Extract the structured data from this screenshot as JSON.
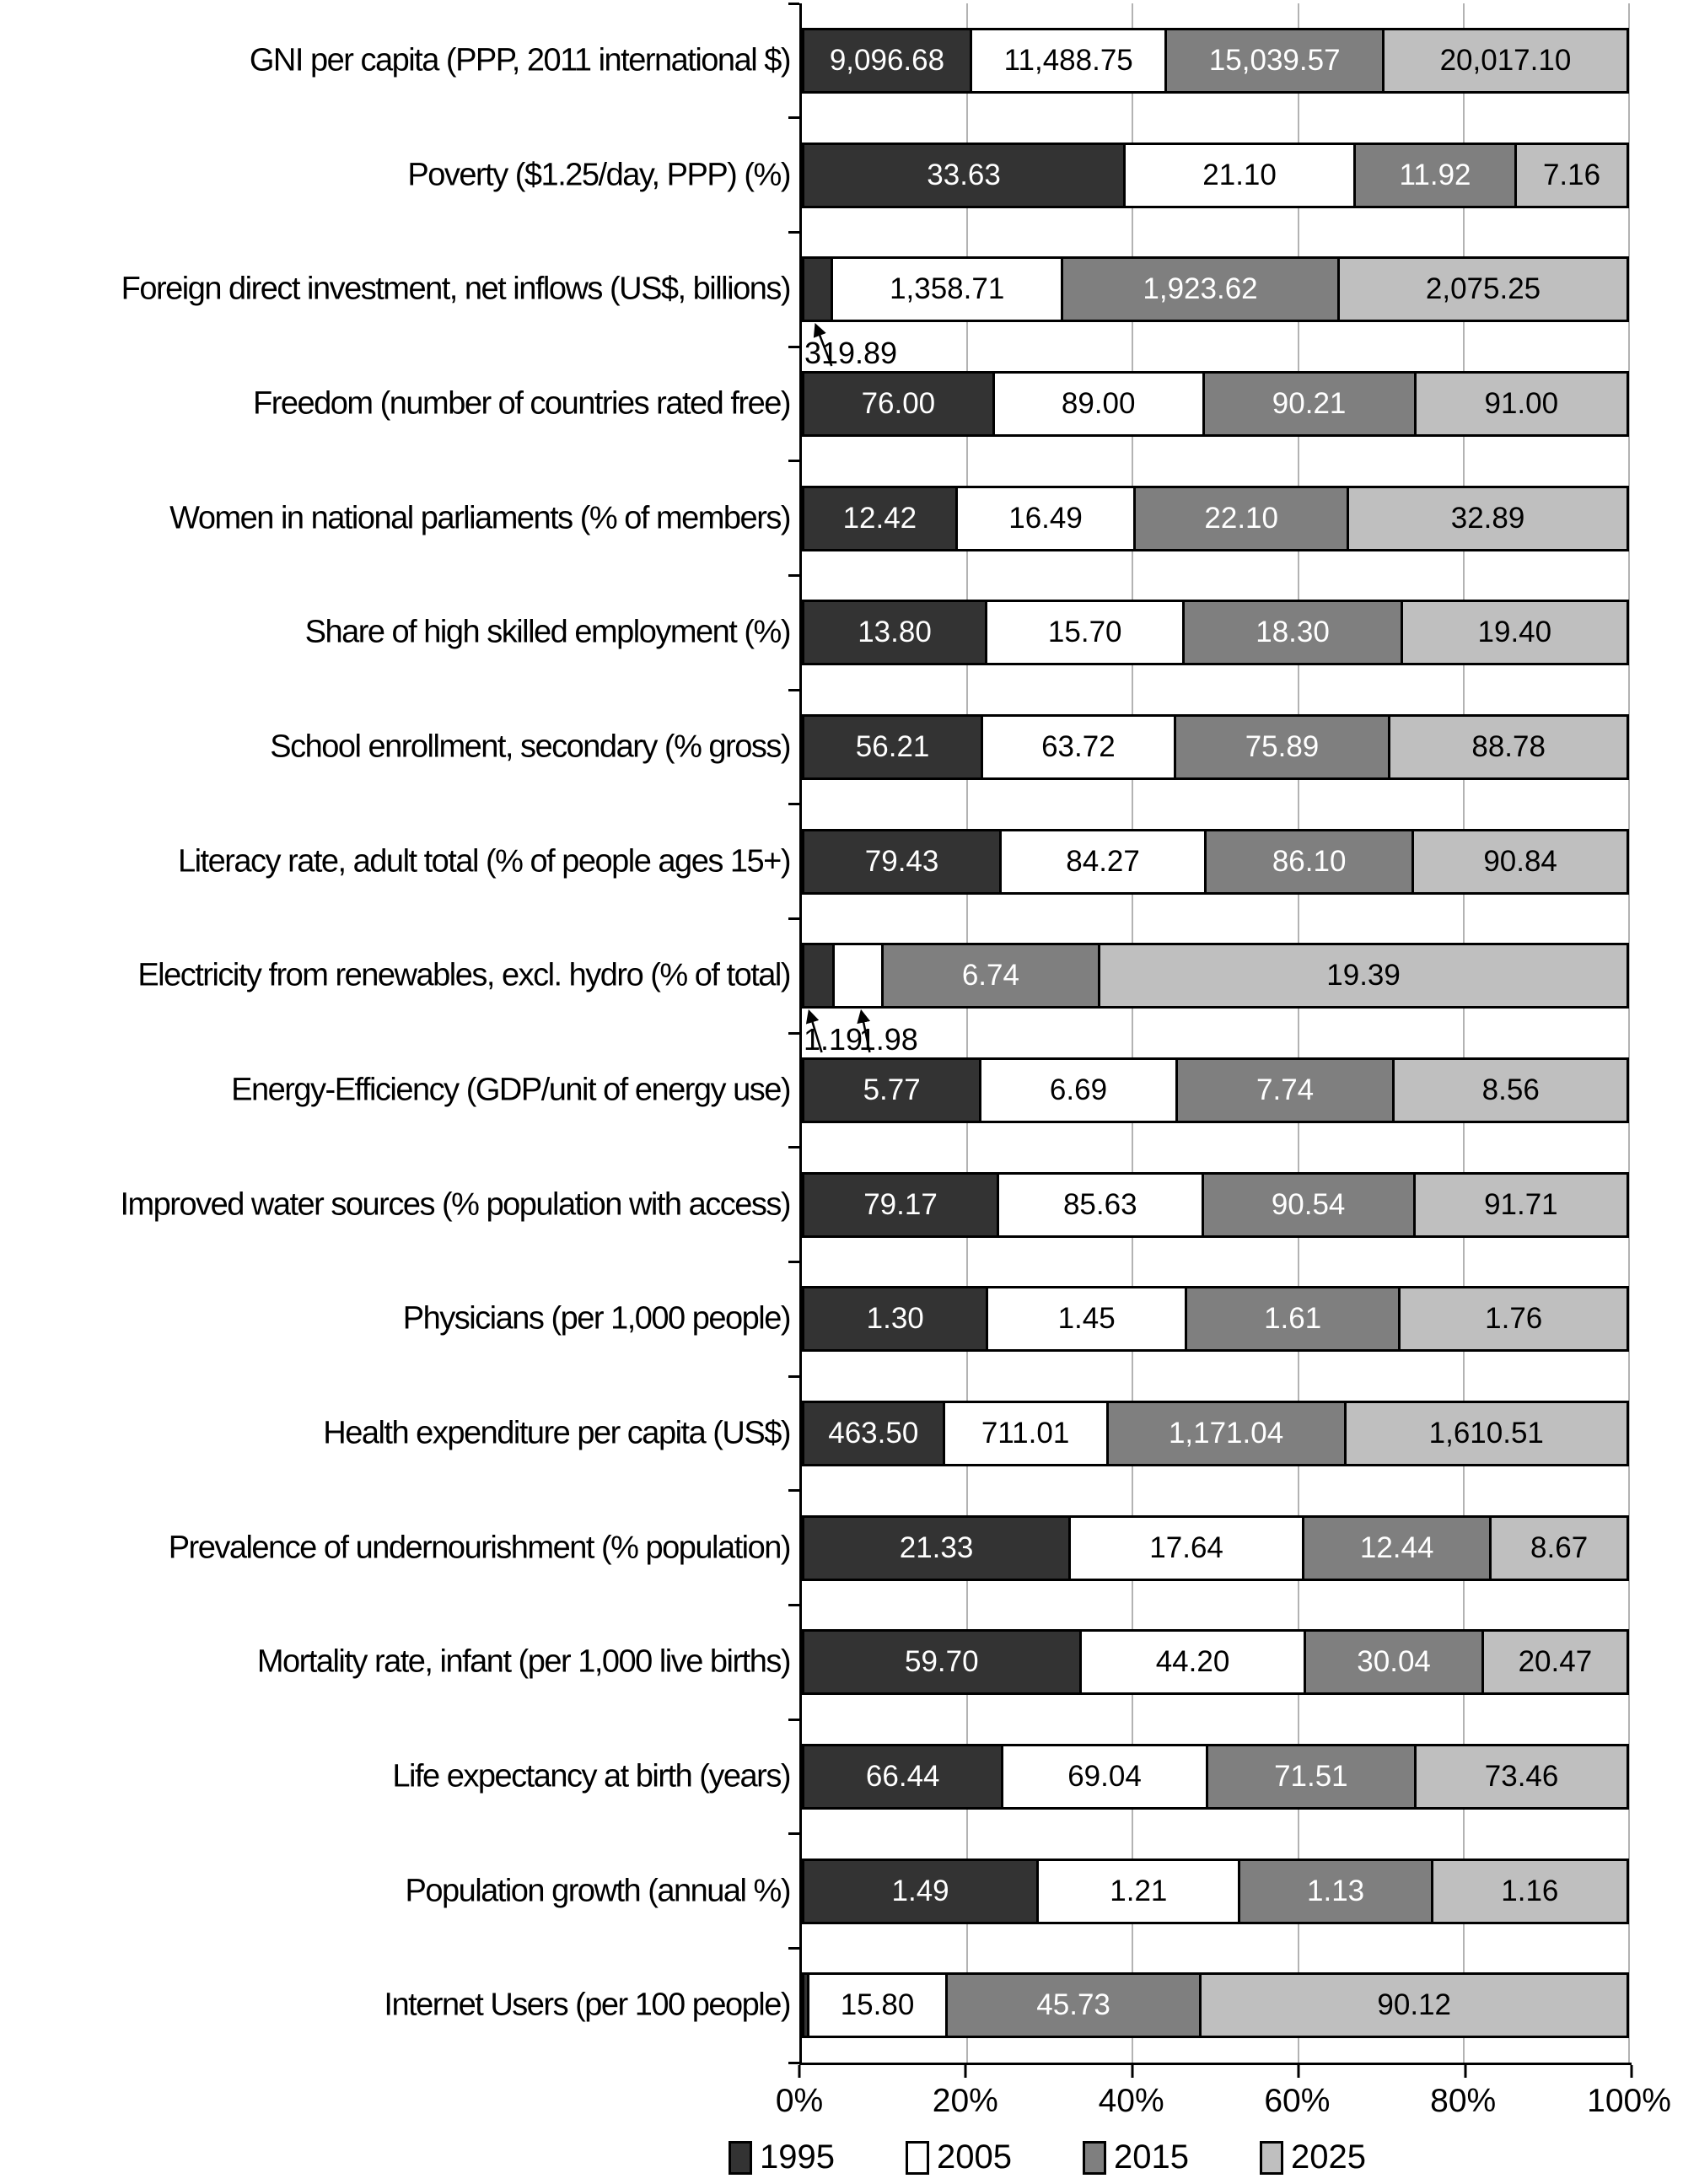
{
  "chart_data": {
    "type": "bar",
    "subtype": "horizontal_100pct_stacked",
    "note": "Each bar is normalized to 100%; segment labels show raw indicator values",
    "series_years": [
      "1995",
      "2005",
      "2015",
      "2025"
    ],
    "series_colors": {
      "1995": "#333333",
      "2005": "#ffffff",
      "2015": "#7f7f7f",
      "2025": "#bfbfbf"
    },
    "value_label_colors": {
      "1995": "#ffffff",
      "2005": "#000000",
      "2015": "#ffffff",
      "2025": "#000000"
    },
    "gridline_color": "#b3b3b3",
    "rows": [
      {
        "label": "GNI per capita (PPP, 2011 international $)",
        "segments": [
          {
            "year": "1995",
            "value": "9,096.68"
          },
          {
            "year": "2005",
            "value": "11,488.75"
          },
          {
            "year": "2015",
            "value": "15,039.57"
          },
          {
            "year": "2025",
            "value": "20,017.10"
          }
        ]
      },
      {
        "label": "Poverty ($1.25/day, PPP) (%)",
        "segments": [
          {
            "year": "1995",
            "value": "33.63"
          },
          {
            "year": "2005",
            "value": "21.10"
          },
          {
            "year": "2015",
            "value": "11.92"
          },
          {
            "year": "2025",
            "value": "7.16"
          }
        ]
      },
      {
        "label": "Foreign direct investment, net inflows (US$, billions)",
        "segments": [
          {
            "year": "1995",
            "value": "319.89",
            "label_outside": true
          },
          {
            "year": "2005",
            "value": "1,358.71"
          },
          {
            "year": "2015",
            "value": "1,923.62"
          },
          {
            "year": "2025",
            "value": "2,075.25"
          }
        ],
        "annotations": [
          {
            "text": "319.89",
            "text_pct": 0.3,
            "tail_pct": 3.6,
            "head_pct": 1.7
          }
        ]
      },
      {
        "label": "Freedom (number of countries rated free)",
        "segments": [
          {
            "year": "1995",
            "value": "76.00"
          },
          {
            "year": "2005",
            "value": "89.00"
          },
          {
            "year": "2015",
            "value": "90.21"
          },
          {
            "year": "2025",
            "value": "91.00"
          }
        ]
      },
      {
        "label": "Women in national parliaments (% of members)",
        "segments": [
          {
            "year": "1995",
            "value": "12.42"
          },
          {
            "year": "2005",
            "value": "16.49"
          },
          {
            "year": "2015",
            "value": "22.10"
          },
          {
            "year": "2025",
            "value": "32.89"
          }
        ]
      },
      {
        "label": "Share of high skilled employment (%)",
        "segments": [
          {
            "year": "1995",
            "value": "13.80"
          },
          {
            "year": "2005",
            "value": "15.70"
          },
          {
            "year": "2015",
            "value": "18.30"
          },
          {
            "year": "2025",
            "value": "19.40"
          }
        ]
      },
      {
        "label": "School enrollment, secondary (% gross)",
        "segments": [
          {
            "year": "1995",
            "value": "56.21"
          },
          {
            "year": "2005",
            "value": "63.72"
          },
          {
            "year": "2015",
            "value": "75.89"
          },
          {
            "year": "2025",
            "value": "88.78"
          }
        ]
      },
      {
        "label": "Literacy rate, adult total (% of people ages 15+)",
        "segments": [
          {
            "year": "1995",
            "value": "79.43"
          },
          {
            "year": "2005",
            "value": "84.27"
          },
          {
            "year": "2015",
            "value": "86.10"
          },
          {
            "year": "2025",
            "value": "90.84"
          }
        ]
      },
      {
        "label": "Electricity from renewables, excl. hydro (% of total)",
        "segments": [
          {
            "year": "1995",
            "value": "1.19",
            "label_outside": true
          },
          {
            "year": "2005",
            "value": "1.98",
            "label_outside": true
          },
          {
            "year": "2015",
            "value": "6.74"
          },
          {
            "year": "2025",
            "value": "19.39"
          }
        ],
        "annotations": [
          {
            "text": "1.19",
            "text_pct": 0.2,
            "tail_pct": 2.4,
            "head_pct": 0.9
          },
          {
            "text": "1.98",
            "text_pct": 6.9,
            "tail_pct": 8.2,
            "head_pct": 7.2
          }
        ]
      },
      {
        "label": "Energy-Efficiency (GDP/unit of energy use)",
        "segments": [
          {
            "year": "1995",
            "value": "5.77"
          },
          {
            "year": "2005",
            "value": "6.69"
          },
          {
            "year": "2015",
            "value": "7.74"
          },
          {
            "year": "2025",
            "value": "8.56"
          }
        ]
      },
      {
        "label": "Improved water sources (% population with access)",
        "segments": [
          {
            "year": "1995",
            "value": "79.17"
          },
          {
            "year": "2005",
            "value": "85.63"
          },
          {
            "year": "2015",
            "value": "90.54"
          },
          {
            "year": "2025",
            "value": "91.71"
          }
        ]
      },
      {
        "label": "Physicians (per 1,000 people)",
        "segments": [
          {
            "year": "1995",
            "value": "1.30"
          },
          {
            "year": "2005",
            "value": "1.45"
          },
          {
            "year": "2015",
            "value": "1.61"
          },
          {
            "year": "2025",
            "value": "1.76"
          }
        ]
      },
      {
        "label": "Health expenditure per capita (US$)",
        "segments": [
          {
            "year": "1995",
            "value": "463.50"
          },
          {
            "year": "2005",
            "value": "711.01"
          },
          {
            "year": "2015",
            "value": "1,171.04"
          },
          {
            "year": "2025",
            "value": "1,610.51"
          }
        ]
      },
      {
        "label": "Prevalence of undernourishment (% population)",
        "segments": [
          {
            "year": "1995",
            "value": "21.33"
          },
          {
            "year": "2005",
            "value": "17.64"
          },
          {
            "year": "2015",
            "value": "12.44"
          },
          {
            "year": "2025",
            "value": "8.67"
          }
        ]
      },
      {
        "label": "Mortality rate, infant (per 1,000 live births)",
        "segments": [
          {
            "year": "1995",
            "value": "59.70"
          },
          {
            "year": "2005",
            "value": "44.20"
          },
          {
            "year": "2015",
            "value": "30.04"
          },
          {
            "year": "2025",
            "value": "20.47"
          }
        ]
      },
      {
        "label": "Life expectancy at birth (years)",
        "segments": [
          {
            "year": "1995",
            "value": "66.44"
          },
          {
            "year": "2005",
            "value": "69.04"
          },
          {
            "year": "2015",
            "value": "71.51"
          },
          {
            "year": "2025",
            "value": "73.46"
          }
        ]
      },
      {
        "label": "Population growth (annual %)",
        "segments": [
          {
            "year": "1995",
            "value": "1.49"
          },
          {
            "year": "2005",
            "value": "1.21"
          },
          {
            "year": "2015",
            "value": "1.13"
          },
          {
            "year": "2025",
            "value": "1.16"
          }
        ]
      },
      {
        "label": "Internet Users (per 100 people)",
        "segments": [
          {
            "year": "1995",
            "value": null,
            "w": 0.7
          },
          {
            "year": "2005",
            "value": "15.80"
          },
          {
            "year": "2015",
            "value": "45.73"
          },
          {
            "year": "2025",
            "value": "90.12"
          }
        ]
      }
    ],
    "x_axis": {
      "ticks": [
        {
          "label": "0%",
          "pct": 0
        },
        {
          "label": "20%",
          "pct": 20
        },
        {
          "label": "40%",
          "pct": 40
        },
        {
          "label": "60%",
          "pct": 60
        },
        {
          "label": "80%",
          "pct": 80
        },
        {
          "label": "100%",
          "pct": 100
        }
      ],
      "gridlines_pct": [
        20,
        40,
        60,
        80,
        100
      ]
    },
    "legend": {
      "items": [
        {
          "label": "1995"
        },
        {
          "label": "2005"
        },
        {
          "label": "2015"
        },
        {
          "label": "2025"
        }
      ]
    }
  }
}
